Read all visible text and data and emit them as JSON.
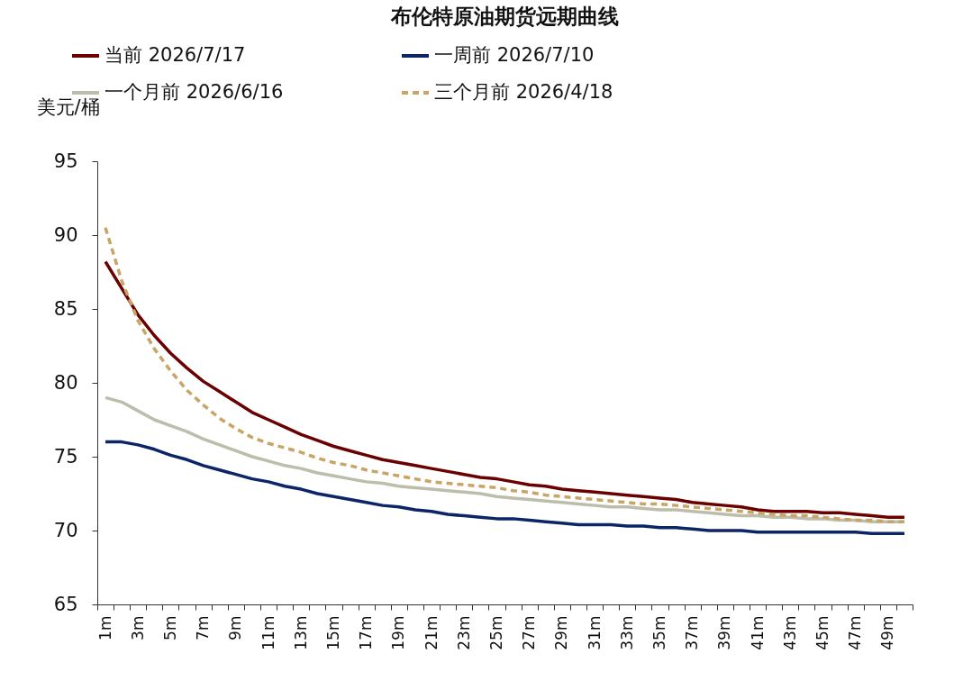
{
  "chart_data": {
    "type": "line",
    "title": "布伦特原油期货远期曲线",
    "ylabel": "美元/桶",
    "categories": [
      "1m",
      null,
      "3m",
      null,
      "5m",
      null,
      "7m",
      null,
      "9m",
      null,
      "11m",
      null,
      "13m",
      null,
      "15m",
      null,
      "17m",
      null,
      "19m",
      null,
      "21m",
      null,
      "23m",
      null,
      "25m",
      null,
      "27m",
      null,
      "29m",
      null,
      "31m",
      null,
      "33m",
      null,
      "35m",
      null,
      "37m",
      null,
      "39m",
      null,
      "41m",
      null,
      "43m",
      null,
      "45m",
      null,
      "47m",
      null,
      "49m",
      null
    ],
    "series": [
      {
        "name": "当前   2026/7/17",
        "color": "#6b0000",
        "line_style": "solid",
        "values": [
          88.2,
          86.4,
          84.6,
          83.2,
          82.0,
          81.0,
          80.1,
          79.4,
          78.7,
          78.0,
          77.5,
          77.0,
          76.5,
          76.1,
          75.7,
          75.4,
          75.1,
          74.8,
          74.6,
          74.4,
          74.2,
          74.0,
          73.8,
          73.6,
          73.5,
          73.3,
          73.1,
          73.0,
          72.8,
          72.7,
          72.6,
          72.5,
          72.4,
          72.3,
          72.2,
          72.1,
          71.9,
          71.8,
          71.7,
          71.6,
          71.4,
          71.3,
          71.3,
          71.3,
          71.2,
          71.2,
          71.1,
          71.0,
          70.9,
          70.9
        ]
      },
      {
        "name": "一周前   2026/7/10",
        "color": "#0b2566",
        "line_style": "solid",
        "values": [
          76.0,
          76.0,
          75.8,
          75.5,
          75.1,
          74.8,
          74.4,
          74.1,
          73.8,
          73.5,
          73.3,
          73.0,
          72.8,
          72.5,
          72.3,
          72.1,
          71.9,
          71.7,
          71.6,
          71.4,
          71.3,
          71.1,
          71.0,
          70.9,
          70.8,
          70.8,
          70.7,
          70.6,
          70.5,
          70.4,
          70.4,
          70.4,
          70.3,
          70.3,
          70.2,
          70.2,
          70.1,
          70.0,
          70.0,
          70.0,
          69.9,
          69.9,
          69.9,
          69.9,
          69.9,
          69.9,
          69.9,
          69.8,
          69.8,
          69.8
        ]
      },
      {
        "name": "一个月前   2026/6/16",
        "color": "#bdbdab",
        "line_style": "solid",
        "values": [
          79.0,
          78.7,
          78.1,
          77.5,
          77.1,
          76.7,
          76.2,
          75.8,
          75.4,
          75.0,
          74.7,
          74.4,
          74.2,
          73.9,
          73.7,
          73.5,
          73.3,
          73.2,
          73.0,
          72.9,
          72.8,
          72.7,
          72.6,
          72.5,
          72.3,
          72.2,
          72.1,
          72.0,
          71.9,
          71.8,
          71.7,
          71.6,
          71.6,
          71.5,
          71.4,
          71.4,
          71.3,
          71.2,
          71.1,
          71.0,
          71.0,
          70.9,
          70.9,
          70.8,
          70.8,
          70.7,
          70.7,
          70.6,
          70.6,
          70.6
        ]
      },
      {
        "name": "三个月前   2026/4/18",
        "color": "#c8a565",
        "line_style": "dashed",
        "values": [
          90.5,
          86.9,
          84.2,
          82.3,
          80.8,
          79.5,
          78.5,
          77.6,
          76.9,
          76.3,
          75.9,
          75.6,
          75.3,
          74.9,
          74.6,
          74.4,
          74.1,
          73.9,
          73.7,
          73.5,
          73.3,
          73.2,
          73.1,
          73.0,
          72.9,
          72.7,
          72.6,
          72.4,
          72.3,
          72.2,
          72.1,
          72.0,
          71.9,
          71.8,
          71.8,
          71.7,
          71.6,
          71.5,
          71.4,
          71.3,
          71.2,
          71.1,
          71.0,
          71.0,
          70.9,
          70.8,
          70.7,
          70.7,
          70.6,
          70.6
        ]
      }
    ],
    "ylim": [
      65,
      95
    ],
    "yticks": [
      65,
      70,
      75,
      80,
      85,
      90,
      95
    ],
    "grid": false,
    "legend": "top"
  }
}
